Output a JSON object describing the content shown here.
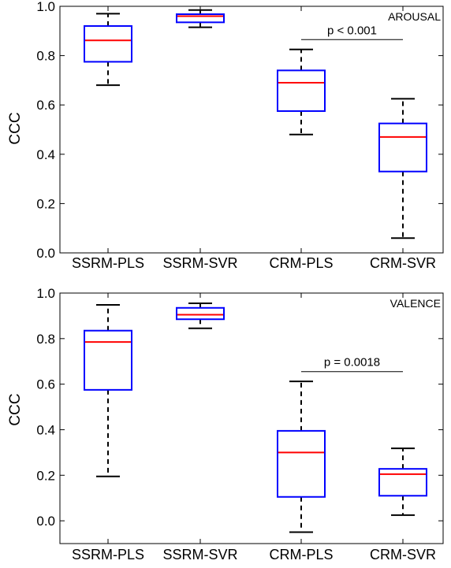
{
  "chart_data": [
    {
      "type": "box",
      "panel_label": "AROUSAL",
      "ylabel": "CCC",
      "ylim": [
        0.0,
        1.0
      ],
      "yticks": [
        "0.0",
        "0.2",
        "0.4",
        "0.6",
        "0.8",
        "1.0"
      ],
      "categories": [
        "SSRM-PLS",
        "SSRM-SVR",
        "CRM-PLS",
        "CRM-SVR"
      ],
      "boxes": [
        {
          "whisker_low": 0.68,
          "q1": 0.775,
          "median": 0.862,
          "q3": 0.92,
          "whisker_high": 0.97
        },
        {
          "whisker_low": 0.915,
          "q1": 0.935,
          "median": 0.96,
          "q3": 0.968,
          "whisker_high": 0.985
        },
        {
          "whisker_low": 0.48,
          "q1": 0.575,
          "median": 0.69,
          "q3": 0.74,
          "whisker_high": 0.825
        },
        {
          "whisker_low": 0.06,
          "q1": 0.33,
          "median": 0.47,
          "q3": 0.525,
          "whisker_high": 0.625
        }
      ],
      "significance": {
        "text": "p < 0.001",
        "from": 2,
        "to": 3,
        "y": 0.865
      }
    },
    {
      "type": "box",
      "panel_label": "VALENCE",
      "ylabel": "CCC",
      "ylim": [
        -0.1,
        1.0
      ],
      "yticks": [
        "0.0",
        "0.2",
        "0.4",
        "0.6",
        "0.8",
        "1.0"
      ],
      "categories": [
        "SSRM-PLS",
        "SSRM-SVR",
        "CRM-PLS",
        "CRM-SVR"
      ],
      "boxes": [
        {
          "whisker_low": 0.195,
          "q1": 0.575,
          "median": 0.785,
          "q3": 0.835,
          "whisker_high": 0.948
        },
        {
          "whisker_low": 0.845,
          "q1": 0.885,
          "median": 0.905,
          "q3": 0.935,
          "whisker_high": 0.955
        },
        {
          "whisker_low": -0.05,
          "q1": 0.105,
          "median": 0.3,
          "q3": 0.395,
          "whisker_high": 0.612
        },
        {
          "whisker_low": 0.025,
          "q1": 0.11,
          "median": 0.205,
          "q3": 0.228,
          "whisker_high": 0.318
        }
      ],
      "significance": {
        "text": "p = 0.0018",
        "from": 2,
        "to": 3,
        "y": 0.655
      }
    }
  ]
}
